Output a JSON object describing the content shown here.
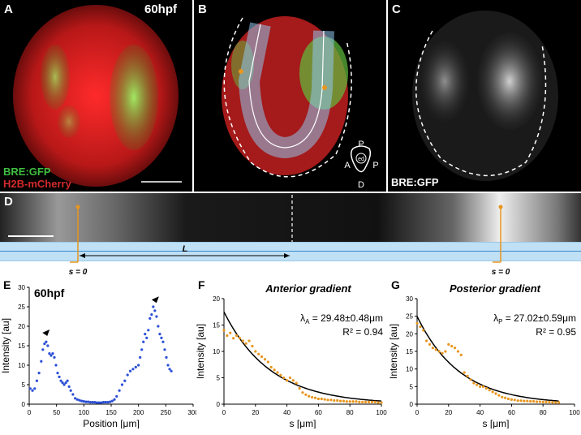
{
  "panels": {
    "A": {
      "letter": "A",
      "time": "60hpf",
      "legend_green": "BRE:GFP",
      "legend_red": "H2B-mCherry"
    },
    "B": {
      "letter": "B",
      "axis": {
        "top": "P",
        "left": "A",
        "right": "P",
        "bottom": "D",
        "center": "ed"
      }
    },
    "C": {
      "letter": "C",
      "label": "BRE:GFP"
    },
    "D": {
      "letter": "D",
      "L": "L",
      "s_left": "s = 0",
      "s_right": "s = 0"
    },
    "E": {
      "letter": "E",
      "time": "60hpf"
    },
    "F": {
      "letter": "F",
      "title": "Anterior gradient",
      "lambda_sym": "λ",
      "lambda_sub": "A",
      "lambda_val": " = 29.48±0.48μm",
      "r2": "R² = 0.94"
    },
    "G": {
      "letter": "G",
      "title": "Posterior gradient",
      "lambda_sym": "λ",
      "lambda_sub": "P",
      "lambda_val": " = 27.02±0.59μm",
      "r2": "R² = 0.95"
    }
  },
  "colors": {
    "green": "#3fbf3f",
    "red": "#d42a2a",
    "blue": "#2b4fd6",
    "orange": "#e8961e",
    "band": "#bfe0f5"
  },
  "chart_data": [
    {
      "type": "scatter",
      "panel": "E",
      "xlabel": "Position [μm]",
      "ylabel": "Intensity [au]",
      "xlim": [
        0,
        300
      ],
      "ylim": [
        0,
        30
      ],
      "xticks": [
        0,
        50,
        100,
        150,
        200,
        250,
        300
      ],
      "yticks": [
        0,
        5,
        10,
        15,
        20,
        25,
        30
      ],
      "series": [
        {
          "color": "#2b4fd6",
          "x": [
            2,
            6,
            10,
            14,
            18,
            22,
            25,
            28,
            31,
            34,
            37,
            40,
            43,
            46,
            49,
            52,
            55,
            58,
            61,
            64,
            67,
            70,
            73,
            76,
            80,
            84,
            88,
            92,
            96,
            100,
            104,
            108,
            112,
            116,
            120,
            124,
            128,
            132,
            136,
            140,
            144,
            148,
            152,
            156,
            160,
            165,
            170,
            175,
            180,
            185,
            190,
            195,
            200,
            203,
            206,
            209,
            212,
            215,
            218,
            221,
            224,
            227,
            230,
            233,
            236,
            239,
            242,
            245,
            248,
            251,
            254,
            257,
            260
          ],
          "y": [
            4,
            3.5,
            4,
            6,
            8,
            11,
            14,
            15.5,
            16,
            15,
            13,
            12.5,
            13,
            12,
            10,
            8,
            7,
            6,
            5.5,
            5,
            5.5,
            6,
            4.5,
            3.5,
            2.5,
            1.5,
            1.2,
            1,
            0.8,
            0.7,
            0.6,
            0.6,
            0.5,
            0.5,
            0.5,
            0.4,
            0.4,
            0.4,
            0.5,
            0.5,
            0.5,
            0.6,
            0.8,
            1.2,
            2,
            3.5,
            5,
            6,
            7.5,
            8.5,
            9,
            9.5,
            10,
            12,
            14,
            16,
            18,
            17,
            19,
            22,
            23,
            25,
            24,
            22.5,
            20,
            18,
            17,
            16,
            14,
            12,
            10,
            9,
            8.5
          ]
        }
      ],
      "annotations": [
        {
          "type": "arrowhead",
          "x": 33,
          "y": 17.5
        },
        {
          "type": "arrowhead",
          "x": 233,
          "y": 26
        }
      ]
    },
    {
      "type": "scatter",
      "panel": "F",
      "xlabel": "s [μm]",
      "ylabel": "Intensity [au]",
      "xlim": [
        0,
        100
      ],
      "ylim": [
        0,
        20
      ],
      "xticks": [
        0,
        20,
        40,
        60,
        80,
        100
      ],
      "yticks": [
        0,
        5,
        10,
        15,
        20
      ],
      "fit": {
        "type": "exponential",
        "A": 17.5,
        "lambda": 29.48,
        "color": "#000000"
      },
      "series": [
        {
          "color": "#e8961e",
          "x": [
            0,
            2,
            4,
            6,
            8,
            10,
            12,
            14,
            16,
            18,
            20,
            22,
            24,
            26,
            28,
            30,
            32,
            34,
            36,
            38,
            40,
            42,
            44,
            46,
            48,
            50,
            52,
            54,
            56,
            58,
            60,
            62,
            64,
            66,
            68,
            70,
            72,
            74,
            76,
            78,
            80,
            82,
            84,
            86,
            88,
            90,
            92,
            94,
            96,
            98,
            100
          ],
          "y": [
            14,
            13,
            13.5,
            12.5,
            13,
            12.5,
            12,
            11.5,
            12,
            11,
            10,
            9.5,
            9,
            8.5,
            8,
            7,
            6.5,
            6,
            5.5,
            5,
            4.5,
            5,
            4.5,
            4,
            3,
            2.2,
            1.8,
            1.5,
            1.3,
            1.2,
            1,
            1,
            0.9,
            0.8,
            0.8,
            0.7,
            0.7,
            0.6,
            0.6,
            0.5,
            0.5,
            0.5,
            0.5,
            0.4,
            0.4,
            0.4,
            0.4,
            0.4,
            0.4,
            0.3,
            0.3
          ]
        }
      ]
    },
    {
      "type": "scatter",
      "panel": "G",
      "xlabel": "s [μm]",
      "ylabel": "Intensity [au]",
      "xlim": [
        0,
        100
      ],
      "ylim": [
        0,
        30
      ],
      "xticks": [
        0,
        20,
        40,
        60,
        80,
        100
      ],
      "yticks": [
        0,
        5,
        10,
        15,
        20,
        25,
        30
      ],
      "fit": {
        "type": "exponential",
        "A": 25,
        "lambda": 27.02,
        "xmax": 90,
        "color": "#000000"
      },
      "series": [
        {
          "color": "#e8961e",
          "x": [
            0,
            2,
            4,
            6,
            8,
            10,
            12,
            14,
            16,
            18,
            20,
            22,
            24,
            26,
            28,
            30,
            32,
            34,
            36,
            38,
            40,
            42,
            44,
            46,
            48,
            50,
            52,
            54,
            56,
            58,
            60,
            62,
            64,
            66,
            68,
            70,
            72,
            74,
            76,
            78,
            80,
            82,
            84,
            86,
            88,
            90
          ],
          "y": [
            23,
            22,
            21,
            18,
            17,
            16,
            15.5,
            15,
            14.5,
            15,
            17,
            16.5,
            16,
            15,
            14,
            9,
            8,
            7,
            6,
            5.5,
            5,
            5,
            4.5,
            4,
            3.5,
            3,
            2.5,
            2,
            1.8,
            1.5,
            1.3,
            1.2,
            1,
            1,
            0.9,
            0.9,
            0.8,
            0.8,
            0.7,
            0.7,
            0.6,
            0.6,
            0.6,
            0.5,
            0.5,
            0.5
          ]
        }
      ]
    }
  ]
}
